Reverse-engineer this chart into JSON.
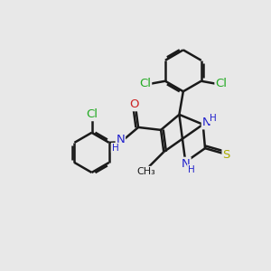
{
  "bg_color": "#e8e8e8",
  "bond_color": "#1a1a1a",
  "bond_width": 1.8,
  "atom_colors": {
    "C": "#1a1a1a",
    "N": "#2222cc",
    "O": "#cc2222",
    "S": "#aaaa00",
    "Cl": "#22aa22",
    "H": "#2222cc"
  },
  "font_size": 9.5
}
